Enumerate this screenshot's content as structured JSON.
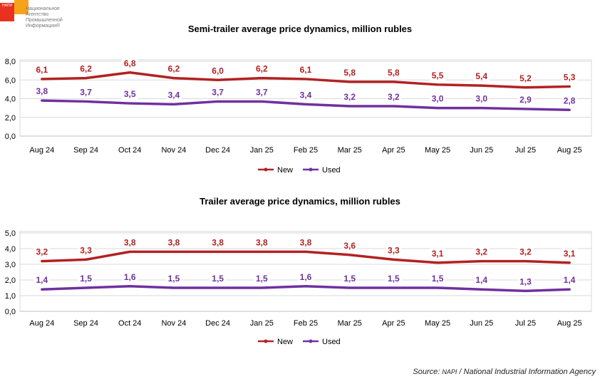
{
  "logo": {
    "abbr": "НАПИ",
    "name": "Национальное Агентство Промышленной Информации®"
  },
  "source": {
    "prefix": "Source: ",
    "agency": "NAPI",
    "rest": " / National Industrial Information Agency"
  },
  "colors": {
    "new": "#b22222",
    "used": "#7030a0",
    "grid": "#d9d9d9",
    "axis": "#bfbfbf"
  },
  "chart_data": [
    {
      "type": "line",
      "title": "Semi-trailer average price dynamics, million rubles",
      "categories": [
        "Aug 24",
        "Sep 24",
        "Oct 24",
        "Nov 24",
        "Dec 24",
        "Jan 25",
        "Feb 25",
        "Mar 25",
        "Apr 25",
        "May 25",
        "Jun 25",
        "Jul 25",
        "Aug 25"
      ],
      "series": [
        {
          "name": "New",
          "values": [
            6.1,
            6.2,
            6.8,
            6.2,
            6.0,
            6.2,
            6.1,
            5.8,
            5.8,
            5.5,
            5.4,
            5.2,
            5.3
          ],
          "labels": [
            "6,1",
            "6,2",
            "6,8",
            "6,2",
            "6,0",
            "6,2",
            "6,1",
            "5,8",
            "5,8",
            "5,5",
            "5,4",
            "5,2",
            "5,3"
          ]
        },
        {
          "name": "Used",
          "values": [
            3.8,
            3.7,
            3.5,
            3.4,
            3.7,
            3.7,
            3.4,
            3.2,
            3.2,
            3.0,
            3.0,
            2.9,
            2.8
          ],
          "labels": [
            "3,8",
            "3,7",
            "3,5",
            "3,4",
            "3,7",
            "3,7",
            "3,4",
            "3,2",
            "3,2",
            "3,0",
            "3,0",
            "2,9",
            "2,8"
          ]
        }
      ],
      "ylim": [
        0,
        8
      ],
      "yticks": [
        "0,0",
        "2,0",
        "4,0",
        "6,0",
        "8,0"
      ],
      "legend": "bottom",
      "grid": true
    },
    {
      "type": "line",
      "title": "Trailer average price dynamics, million rubles",
      "categories": [
        "Aug 24",
        "Sep 24",
        "Oct 24",
        "Nov 24",
        "Dec 24",
        "Jan 25",
        "Feb 25",
        "Mar 25",
        "Apr 25",
        "May 25",
        "Jun 25",
        "Jul 25",
        "Aug 25"
      ],
      "series": [
        {
          "name": "New",
          "values": [
            3.2,
            3.3,
            3.8,
            3.8,
            3.8,
            3.8,
            3.8,
            3.6,
            3.3,
            3.1,
            3.2,
            3.2,
            3.1
          ],
          "labels": [
            "3,2",
            "3,3",
            "3,8",
            "3,8",
            "3,8",
            "3,8",
            "3,8",
            "3,6",
            "3,3",
            "3,1",
            "3,2",
            "3,2",
            "3,1"
          ]
        },
        {
          "name": "Used",
          "values": [
            1.4,
            1.5,
            1.6,
            1.5,
            1.5,
            1.5,
            1.6,
            1.5,
            1.5,
            1.5,
            1.4,
            1.3,
            1.4
          ],
          "labels": [
            "1,4",
            "1,5",
            "1,6",
            "1,5",
            "1,5",
            "1,5",
            "1,6",
            "1,5",
            "1,5",
            "1,5",
            "1,4",
            "1,3",
            "1,4"
          ]
        }
      ],
      "ylim": [
        0,
        5
      ],
      "yticks": [
        "0,0",
        "1,0",
        "2,0",
        "3,0",
        "4,0",
        "5,0"
      ],
      "legend": "bottom",
      "grid": true
    }
  ]
}
